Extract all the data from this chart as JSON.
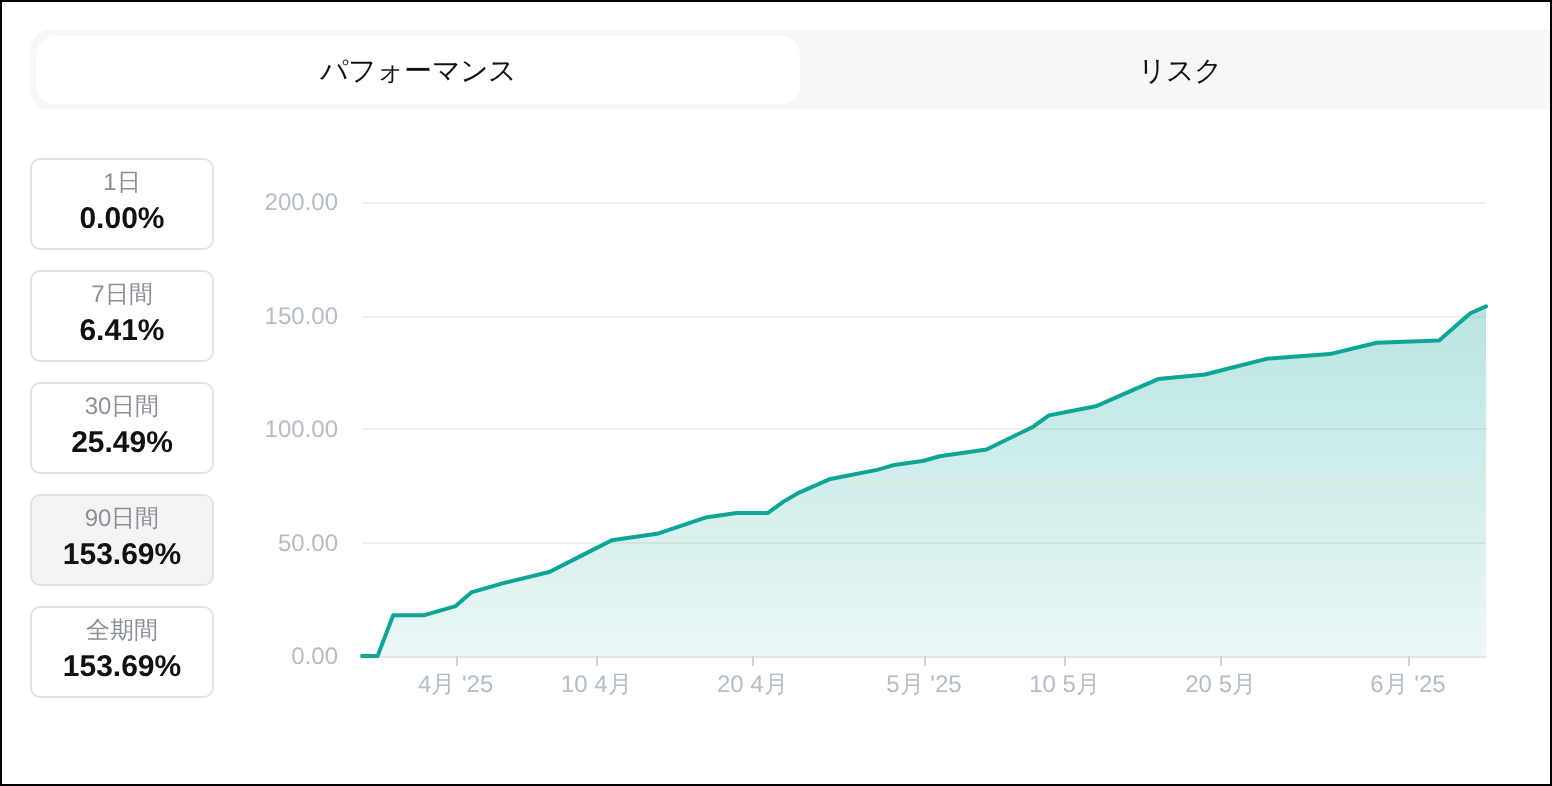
{
  "chart_data": {
    "type": "area",
    "annotations": [
      "パフォーマンス",
      "リスク",
      "1日",
      "0.00%",
      "7日間",
      "6.41%",
      "30日間",
      "25.49%",
      "90日間",
      "153.69%",
      "全期間",
      "153.69%"
    ],
    "x": [
      "2025-03-26",
      "2025-03-27",
      "2025-03-28",
      "2025-03-30",
      "2025-04-01",
      "2025-04-02",
      "2025-04-04",
      "2025-04-07",
      "2025-04-09",
      "2025-04-11",
      "2025-04-14",
      "2025-04-17",
      "2025-04-19",
      "2025-04-21",
      "2025-04-22",
      "2025-04-23",
      "2025-04-25",
      "2025-04-28",
      "2025-04-29",
      "2025-05-01",
      "2025-05-02",
      "2025-05-05",
      "2025-05-08",
      "2025-05-09",
      "2025-05-12",
      "2025-05-14",
      "2025-05-16",
      "2025-05-19",
      "2025-05-23",
      "2025-05-27",
      "2025-05-30",
      "2025-06-03",
      "2025-06-04",
      "2025-06-05",
      "2025-06-06"
    ],
    "series": [
      {
        "color": "#0ea597",
        "values": [
          0,
          0,
          18,
          18,
          22,
          28,
          32,
          37,
          44,
          51,
          54,
          61,
          63,
          63,
          68,
          72,
          78,
          82,
          84,
          86,
          88,
          91,
          101,
          106,
          110,
          116,
          122,
          124,
          131,
          133,
          138,
          139,
          145,
          151,
          154
        ]
      }
    ],
    "xlim": [
      "2025-03-26",
      "2025-06-06"
    ],
    "xticks": [
      {
        "value": "2025-04-01",
        "label": "4月 '25"
      },
      {
        "value": "2025-04-10",
        "label": "10 4月"
      },
      {
        "value": "2025-04-20",
        "label": "20 4月"
      },
      {
        "value": "2025-05-01",
        "label": "5月 '25"
      },
      {
        "value": "2025-05-10",
        "label": "10 5月"
      },
      {
        "value": "2025-05-20",
        "label": "20 5月"
      },
      {
        "value": "2025-06-01",
        "label": "6月 '25"
      }
    ],
    "ylim": [
      0,
      200
    ],
    "yticks": [
      {
        "value": 0,
        "label": "0.00"
      },
      {
        "value": 50,
        "label": "50.00"
      },
      {
        "value": 100,
        "label": "100.00"
      },
      {
        "value": 150,
        "label": "150.00"
      },
      {
        "value": 200,
        "label": "200.00"
      }
    ],
    "grid": "y",
    "marker": "none",
    "line_style": "solid"
  }
}
